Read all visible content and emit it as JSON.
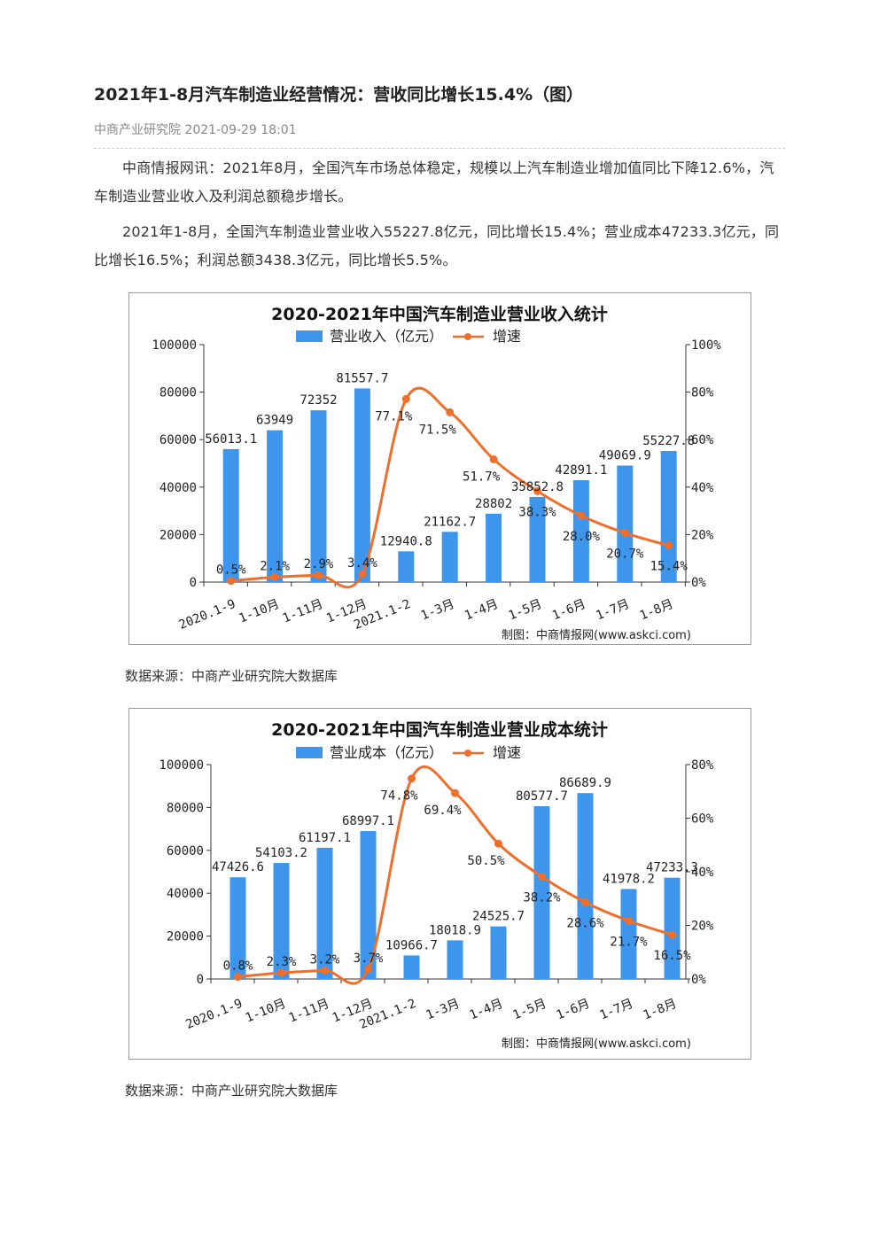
{
  "article": {
    "title": "2021年1-8月汽车制造业经营情况：营收同比增长15.4%（图）",
    "source_line": "中商产业研究院 2021-09-29 18:01",
    "paragraphs": [
      "中商情报网讯：2021年8月，全国汽车市场总体稳定，规模以上汽车制造业增加值同比下降12.6%，汽车制造业营业收入及利润总额稳步增长。",
      "2021年1-8月，全国汽车制造业营业收入55227.8亿元，同比增长15.4%；营业成本47233.3亿元，同比增长16.5%；利润总额3438.3亿元，同比增长5.5%。"
    ],
    "data_source_1": "数据来源：中商产业研究院大数据库",
    "data_source_2": "数据来源：中商产业研究院大数据库"
  },
  "chart_data": [
    {
      "type": "bar",
      "title": "2020-2021年中国汽车制造业营业收入统计",
      "credit": "制图：中商情报网(www.askci.com)",
      "categories": [
        "2020.1-9",
        "1-10月",
        "1-11月",
        "1-12月",
        "2021.1-2",
        "1-3月",
        "1-4月",
        "1-5月",
        "1-6月",
        "1-7月",
        "1-8月"
      ],
      "series": [
        {
          "name": "营业收入（亿元）",
          "values": [
            56013.1,
            63949,
            72352,
            81557.7,
            12940.8,
            21162.7,
            28802,
            35852.8,
            42891.1,
            49069.9,
            55227.8
          ],
          "labels": [
            "56013.1",
            "63949",
            "72352",
            "81557.7",
            "12940.8",
            "21162.7",
            "28802",
            "35852.8",
            "42891.1",
            "49069.9",
            "55227.8"
          ]
        },
        {
          "name": "增速",
          "values": [
            0.5,
            2.1,
            2.9,
            3.4,
            77.1,
            71.5,
            51.7,
            38.3,
            28.0,
            20.7,
            15.4
          ],
          "labels": [
            "0.5%",
            "2.1%",
            "2.9%",
            "3.4%",
            "77.1%",
            "71.5%",
            "51.7%",
            "38.3%",
            "28.0%",
            "20.7%",
            "15.4%"
          ]
        }
      ],
      "ylim_left": [
        0,
        100000
      ],
      "yticks_left": [
        "0",
        "20000",
        "40000",
        "60000",
        "80000",
        "100000"
      ],
      "ylim_right": [
        0,
        100
      ],
      "yticks_right": [
        "0%",
        "20%",
        "40%",
        "60%",
        "80%",
        "100%"
      ],
      "legend": "top-center",
      "bar_color": "#3d95ec",
      "line_color": "#ee6f2c",
      "grid": false
    },
    {
      "type": "bar",
      "title": "2020-2021年中国汽车制造业营业成本统计",
      "credit": "制图：中商情报网(www.askci.com)",
      "categories": [
        "2020.1-9",
        "1-10月",
        "1-11月",
        "1-12月",
        "2021.1-2",
        "1-3月",
        "1-4月",
        "1-5月",
        "1-6月",
        "1-7月",
        "1-8月"
      ],
      "series": [
        {
          "name": "营业成本（亿元）",
          "values": [
            47426.6,
            54103.2,
            61197.1,
            68997.1,
            10966.7,
            18018.9,
            24525.7,
            80577.7,
            86689.9,
            41978.2,
            47233.3
          ],
          "labels": [
            "47426.6",
            "54103.2",
            "61197.1",
            "68997.1",
            "10966.7",
            "18018.9",
            "24525.7",
            "80577.7",
            "86689.9",
            "41978.2",
            "47233.3"
          ]
        },
        {
          "name": "增速",
          "values": [
            0.8,
            2.3,
            3.2,
            3.7,
            74.8,
            69.4,
            50.5,
            38.2,
            28.6,
            21.7,
            16.5
          ],
          "labels": [
            "0.8%",
            "2.3%",
            "3.2%",
            "3.7%",
            "74.8%",
            "69.4%",
            "50.5%",
            "38.2%",
            "28.6%",
            "21.7%",
            "16.5%"
          ]
        }
      ],
      "ylim_left": [
        0,
        100000
      ],
      "yticks_left": [
        "0",
        "20000",
        "40000",
        "60000",
        "80000",
        "100000"
      ],
      "ylim_right": [
        0,
        80
      ],
      "yticks_right": [
        "0%",
        "20%",
        "40%",
        "60%",
        "80%"
      ],
      "legend": "top-center",
      "bar_color": "#3d95ec",
      "line_color": "#ee6f2c",
      "grid": false
    }
  ]
}
